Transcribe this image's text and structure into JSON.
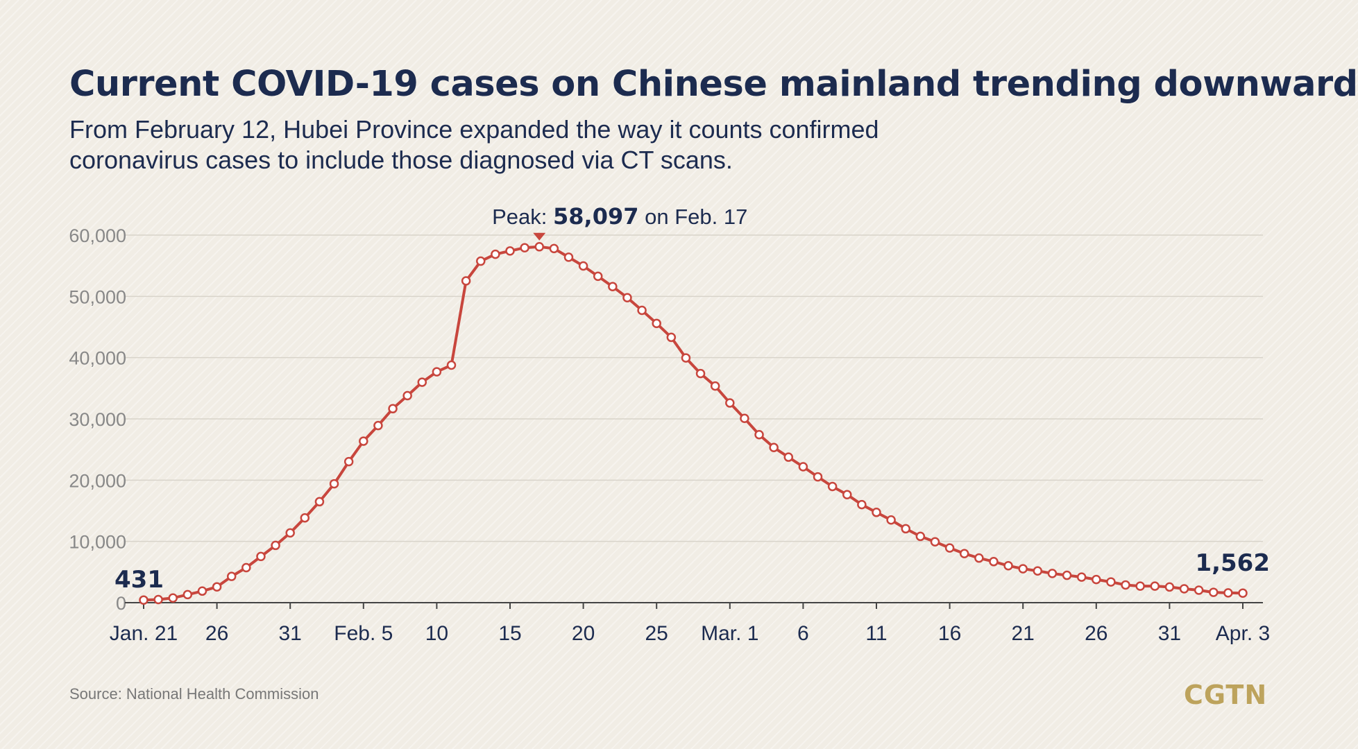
{
  "title": "Current COVID-19 cases on Chinese mainland trending downward",
  "subtitle": {
    "line1": "From February 12, Hubei Province expanded the way it counts confirmed",
    "line2": "coronavirus cases to include those diagnosed via CT scans."
  },
  "source": "Source: National Health Commission",
  "logo": "CGTN",
  "colors": {
    "line": "#c8463d",
    "text": "#1c2b4f",
    "axis_text": "#888888",
    "grid": "#d8d3ca",
    "logo": "#bda35c"
  },
  "chart_data": {
    "type": "line",
    "y_ticks": [
      "0",
      "10,000",
      "20,000",
      "30,000",
      "40,000",
      "50,000",
      "60,000"
    ],
    "x_tick_labels": [
      "Jan. 21",
      "26",
      "31",
      "Feb. 5",
      "10",
      "15",
      "20",
      "25",
      "Mar. 1",
      "6",
      "11",
      "16",
      "21",
      "26",
      "31",
      "Apr. 3"
    ],
    "ylim": [
      0,
      60000
    ],
    "grid": true,
    "start_label": "431",
    "end_label": "1,562",
    "peak_annotation": {
      "prefix": "Peak: ",
      "value": "58,097",
      "suffix": " on Feb. 17"
    },
    "series": [
      {
        "values": [
          431,
          509,
          766,
          1317,
          1890,
          2581,
          4287,
          5721,
          7545,
          9349,
          11395,
          13844,
          16481,
          19408,
          23025,
          26366,
          28911,
          31664,
          33788,
          35986,
          37688,
          38776,
          52526,
          55748,
          56873,
          57416,
          57934,
          58097,
          57805,
          56393,
          54965,
          53284,
          51600,
          49786,
          47718,
          45585,
          43311,
          39954,
          37397,
          35360,
          32599,
          30084,
          27429,
          25330,
          23754,
          22192,
          20538,
          18965,
          17638,
          16008,
          14739,
          13499,
          12066,
          10819,
          9937,
          8930,
          8011,
          7283,
          6702,
          6024,
          5535,
          5182,
          4767,
          4467,
          4175,
          3776,
          3389,
          2884,
          2705,
          2701,
          2556,
          2266,
          2037,
          1691,
          1599,
          1562
        ]
      }
    ]
  }
}
